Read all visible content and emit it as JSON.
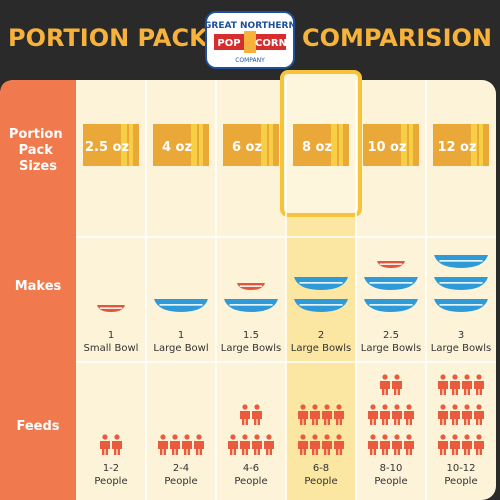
{
  "header": {
    "title_left": "PORTION PACK",
    "title_right": "COMPARISION",
    "logo": {
      "top": "GREAT NORTHERN",
      "left": "POP",
      "right": "CORN",
      "bottom": "COMPANY"
    }
  },
  "row_labels": {
    "sizes": [
      "Portion",
      "Pack",
      "Sizes"
    ],
    "makes": "Makes",
    "feeds": "Feeds"
  },
  "columns": [
    {
      "size": "2.5 oz",
      "makes": [
        "1",
        "Small Bowl"
      ],
      "feeds": [
        "1-2",
        "People"
      ]
    },
    {
      "size": "4 oz",
      "makes": [
        "1",
        "Large Bowl"
      ],
      "feeds": [
        "2-4",
        "People"
      ]
    },
    {
      "size": "6 oz",
      "makes": [
        "1.5",
        "Large Bowls"
      ],
      "feeds": [
        "4-6",
        "People"
      ]
    },
    {
      "size": "8 oz",
      "makes": [
        "2",
        "Large Bowls"
      ],
      "feeds": [
        "6-8",
        "People"
      ]
    },
    {
      "size": "10 oz",
      "makes": [
        "2.5",
        "Large Bowls"
      ],
      "feeds": [
        "8-10",
        "People"
      ]
    },
    {
      "size": "12 oz",
      "makes": [
        "3",
        "Large Bowls"
      ],
      "feeds": [
        "10-12",
        "People"
      ]
    }
  ]
}
